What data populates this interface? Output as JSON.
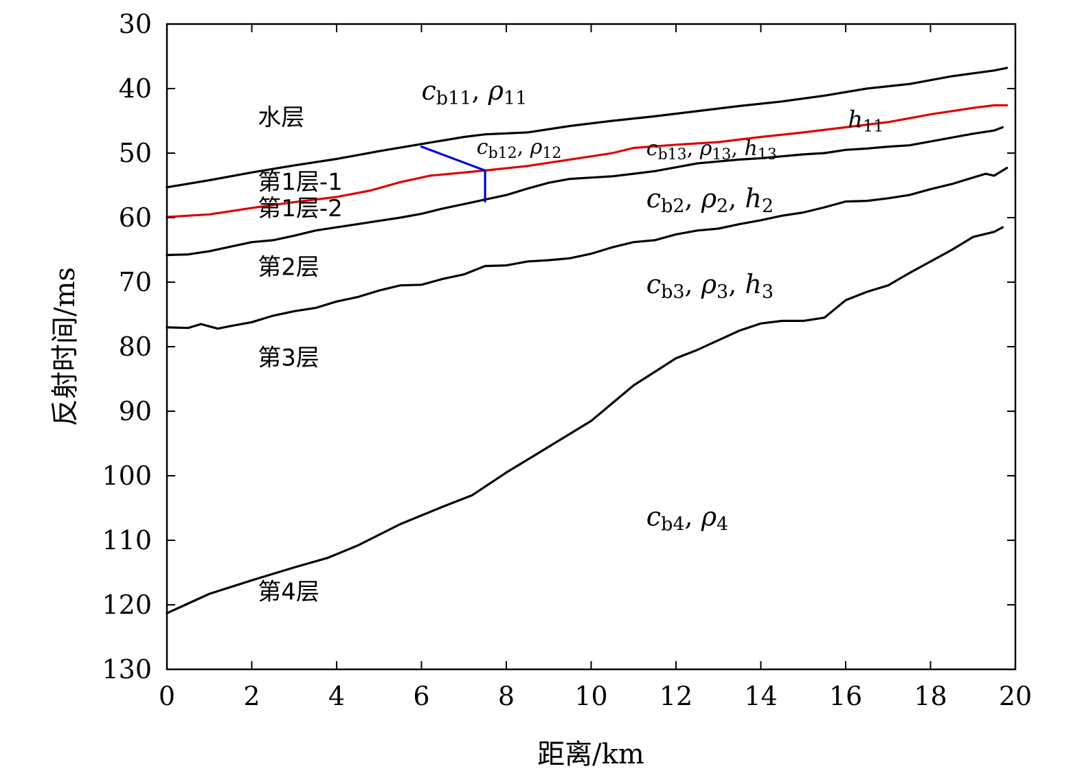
{
  "chart_data": {
    "type": "line",
    "title": "",
    "xlabel": "距离/km",
    "ylabel": "反射时间/ms",
    "xlim": [
      0,
      20
    ],
    "ylim": [
      130,
      30
    ],
    "y_inverted": true,
    "xticks": [
      0,
      2,
      4,
      6,
      8,
      10,
      12,
      14,
      16,
      18,
      20
    ],
    "yticks": [
      30,
      40,
      50,
      60,
      70,
      80,
      90,
      100,
      110,
      120,
      130
    ],
    "grid": false,
    "series": [
      {
        "name": "seafloor",
        "color": "#000000",
        "points": [
          [
            0,
            55.3
          ],
          [
            1,
            54.2
          ],
          [
            2,
            53.0
          ],
          [
            3,
            51.9
          ],
          [
            4,
            50.9
          ],
          [
            5,
            49.7
          ],
          [
            6,
            48.6
          ],
          [
            7,
            47.5
          ],
          [
            7.5,
            47.1
          ],
          [
            8.5,
            46.8
          ],
          [
            9.5,
            45.8
          ],
          [
            10.5,
            45.0
          ],
          [
            11.5,
            44.3
          ],
          [
            12.5,
            43.5
          ],
          [
            13.5,
            42.7
          ],
          [
            14.5,
            42.0
          ],
          [
            15.5,
            41.1
          ],
          [
            16.5,
            40.0
          ],
          [
            17.5,
            39.3
          ],
          [
            18.5,
            38.1
          ],
          [
            19.5,
            37.2
          ],
          [
            19.8,
            36.8
          ]
        ]
      },
      {
        "name": "layer1 internal boundary",
        "color": "#dd0000",
        "points": [
          [
            0,
            59.9
          ],
          [
            0.5,
            59.7
          ],
          [
            1,
            59.5
          ],
          [
            2,
            58.5
          ],
          [
            3,
            57.6
          ],
          [
            4,
            56.8
          ],
          [
            4.8,
            55.8
          ],
          [
            5.5,
            54.5
          ],
          [
            6.2,
            53.5
          ],
          [
            7.5,
            52.7
          ],
          [
            8.5,
            52.0
          ],
          [
            9.5,
            51.0
          ],
          [
            10.5,
            50.0
          ],
          [
            11,
            49.2
          ],
          [
            12,
            48.7
          ],
          [
            13,
            48.3
          ],
          [
            14,
            47.5
          ],
          [
            15,
            46.8
          ],
          [
            16,
            46.0
          ],
          [
            17,
            45.2
          ],
          [
            18,
            44.0
          ],
          [
            19,
            43.0
          ],
          [
            19.5,
            42.6
          ],
          [
            19.8,
            42.6
          ]
        ]
      },
      {
        "name": "layer1 bottom",
        "color": "#000000",
        "points": [
          [
            0,
            65.8
          ],
          [
            0.5,
            65.7
          ],
          [
            1,
            65.2
          ],
          [
            1.5,
            64.5
          ],
          [
            2,
            63.8
          ],
          [
            2.5,
            63.5
          ],
          [
            3,
            62.8
          ],
          [
            3.5,
            62.0
          ],
          [
            4,
            61.5
          ],
          [
            4.5,
            61.0
          ],
          [
            5,
            60.5
          ],
          [
            5.5,
            60.0
          ],
          [
            6,
            59.4
          ],
          [
            6.5,
            58.6
          ],
          [
            7,
            57.9
          ],
          [
            7.5,
            57.2
          ],
          [
            8,
            56.5
          ],
          [
            8.5,
            55.5
          ],
          [
            9,
            54.6
          ],
          [
            9.5,
            54.0
          ],
          [
            10,
            53.8
          ],
          [
            10.5,
            53.6
          ],
          [
            11,
            53.2
          ],
          [
            11.5,
            52.8
          ],
          [
            12,
            52.2
          ],
          [
            12.5,
            51.6
          ],
          [
            13,
            51.3
          ],
          [
            13.5,
            51.0
          ],
          [
            14,
            50.8
          ],
          [
            14.5,
            50.5
          ],
          [
            15,
            50.2
          ],
          [
            15.5,
            50.0
          ],
          [
            16,
            49.5
          ],
          [
            16.5,
            49.3
          ],
          [
            17,
            49.0
          ],
          [
            17.5,
            48.8
          ],
          [
            18,
            48.2
          ],
          [
            18.5,
            47.6
          ],
          [
            19,
            47.0
          ],
          [
            19.5,
            46.5
          ],
          [
            19.7,
            46.0
          ]
        ]
      },
      {
        "name": "layer2 bottom",
        "color": "#000000",
        "points": [
          [
            0,
            77.0
          ],
          [
            0.5,
            77.1
          ],
          [
            0.8,
            76.5
          ],
          [
            1.2,
            77.2
          ],
          [
            1.5,
            76.8
          ],
          [
            2,
            76.2
          ],
          [
            2.5,
            75.2
          ],
          [
            3,
            74.5
          ],
          [
            3.5,
            74.0
          ],
          [
            4,
            73.0
          ],
          [
            4.5,
            72.3
          ],
          [
            5,
            71.3
          ],
          [
            5.5,
            70.5
          ],
          [
            6,
            70.4
          ],
          [
            6.5,
            69.5
          ],
          [
            7,
            68.8
          ],
          [
            7.5,
            67.5
          ],
          [
            8,
            67.4
          ],
          [
            8.5,
            66.8
          ],
          [
            9,
            66.6
          ],
          [
            9.5,
            66.3
          ],
          [
            10,
            65.6
          ],
          [
            10.5,
            64.6
          ],
          [
            11,
            63.8
          ],
          [
            11.5,
            63.5
          ],
          [
            12,
            62.6
          ],
          [
            12.5,
            62.0
          ],
          [
            13,
            61.7
          ],
          [
            13.5,
            61.0
          ],
          [
            14,
            60.4
          ],
          [
            14.5,
            59.7
          ],
          [
            15,
            59.2
          ],
          [
            15.5,
            58.4
          ],
          [
            16,
            57.5
          ],
          [
            16.5,
            57.4
          ],
          [
            17,
            57.0
          ],
          [
            17.5,
            56.5
          ],
          [
            18,
            55.6
          ],
          [
            18.5,
            54.8
          ],
          [
            19,
            53.8
          ],
          [
            19.3,
            53.2
          ],
          [
            19.5,
            53.5
          ],
          [
            19.8,
            52.3
          ]
        ]
      },
      {
        "name": "layer3 bottom",
        "color": "#000000",
        "points": [
          [
            0,
            121.3
          ],
          [
            1,
            118.3
          ],
          [
            2,
            116.2
          ],
          [
            3,
            114.2
          ],
          [
            3.8,
            112.7
          ],
          [
            4.5,
            110.8
          ],
          [
            5.5,
            107.5
          ],
          [
            6.5,
            104.8
          ],
          [
            7.2,
            103.0
          ],
          [
            8,
            99.5
          ],
          [
            9,
            95.5
          ],
          [
            10,
            91.5
          ],
          [
            11,
            86.0
          ],
          [
            12,
            81.8
          ],
          [
            12.5,
            80.5
          ],
          [
            13,
            79.0
          ],
          [
            13.5,
            77.5
          ],
          [
            14,
            76.4
          ],
          [
            14.5,
            76.0
          ],
          [
            15,
            76.0
          ],
          [
            15.5,
            75.5
          ],
          [
            16,
            72.8
          ],
          [
            16.5,
            71.5
          ],
          [
            17,
            70.5
          ],
          [
            17.5,
            68.6
          ],
          [
            18,
            66.8
          ],
          [
            18.5,
            65.0
          ],
          [
            19,
            63.0
          ],
          [
            19.5,
            62.2
          ],
          [
            19.7,
            61.5
          ]
        ]
      },
      {
        "name": "inclined interface segment",
        "color": "#0000dd",
        "points": [
          [
            6.0,
            49.0
          ],
          [
            7.5,
            52.7
          ]
        ]
      },
      {
        "name": "vertical interface segment",
        "color": "#0000dd",
        "points": [
          [
            7.5,
            52.7
          ],
          [
            7.5,
            57.5
          ]
        ]
      }
    ],
    "annotations": [
      {
        "parts": [
          [
            "c",
            "i",
            38
          ],
          [
            "b11",
            "s",
            27
          ],
          [
            ", ",
            "n",
            38
          ],
          [
            "ρ",
            "i",
            38
          ],
          [
            "11",
            "s",
            27
          ]
        ],
        "x": 6.0,
        "y": 41.7
      },
      {
        "parts": [
          [
            "c",
            "i",
            30
          ],
          [
            "b12",
            "s",
            22
          ],
          [
            ", ",
            "n",
            30
          ],
          [
            "ρ",
            "i",
            30
          ],
          [
            "12",
            "s",
            22
          ]
        ],
        "x": 7.3,
        "y": 50.1
      },
      {
        "parts": [
          [
            "c",
            "i",
            30
          ],
          [
            "b13",
            "s",
            22
          ],
          [
            ", ",
            "n",
            30
          ],
          [
            "ρ",
            "i",
            30
          ],
          [
            "13",
            "s",
            22
          ],
          [
            ", ",
            "n",
            30
          ],
          [
            "h",
            "i",
            30
          ],
          [
            "13",
            "s",
            22
          ]
        ],
        "x": 11.3,
        "y": 50.3
      },
      {
        "parts": [
          [
            "h",
            "i",
            34
          ],
          [
            "11",
            "s",
            24
          ]
        ],
        "x": 16.05,
        "y": 46.0
      },
      {
        "parts": [
          [
            "c",
            "i",
            38
          ],
          [
            "b2",
            "s",
            27
          ],
          [
            ", ",
            "n",
            38
          ],
          [
            "ρ",
            "i",
            38
          ],
          [
            "2",
            "s",
            27
          ],
          [
            ", ",
            "n",
            38
          ],
          [
            "h",
            "i",
            38
          ],
          [
            "2",
            "s",
            27
          ]
        ],
        "x": 11.3,
        "y": 58.4
      },
      {
        "parts": [
          [
            "c",
            "i",
            38
          ],
          [
            "b3",
            "s",
            27
          ],
          [
            ", ",
            "n",
            38
          ],
          [
            "ρ",
            "i",
            38
          ],
          [
            "3",
            "s",
            27
          ],
          [
            ", ",
            "n",
            38
          ],
          [
            "h",
            "i",
            38
          ],
          [
            "3",
            "s",
            27
          ]
        ],
        "x": 11.3,
        "y": 71.7
      },
      {
        "parts": [
          [
            "c",
            "i",
            38
          ],
          [
            "b4",
            "s",
            27
          ],
          [
            ", ",
            "n",
            38
          ],
          [
            "ρ",
            "i",
            38
          ],
          [
            "4",
            "s",
            27
          ]
        ],
        "x": 11.3,
        "y": 107.7
      }
    ],
    "layer_labels": [
      {
        "text": "水层",
        "x": 3.0,
        "y": 45.7
      },
      {
        "text": "第1层-1",
        "x": 3.0,
        "y": 55.7
      },
      {
        "text": "第1层-2",
        "x": 3.0,
        "y": 59.8
      },
      {
        "text": "第2层",
        "x": 3.0,
        "y": 68.9
      },
      {
        "text": "第3层",
        "x": 3.0,
        "y": 82.9
      },
      {
        "text": "第4层",
        "x": 3.0,
        "y": 119.2
      }
    ]
  }
}
